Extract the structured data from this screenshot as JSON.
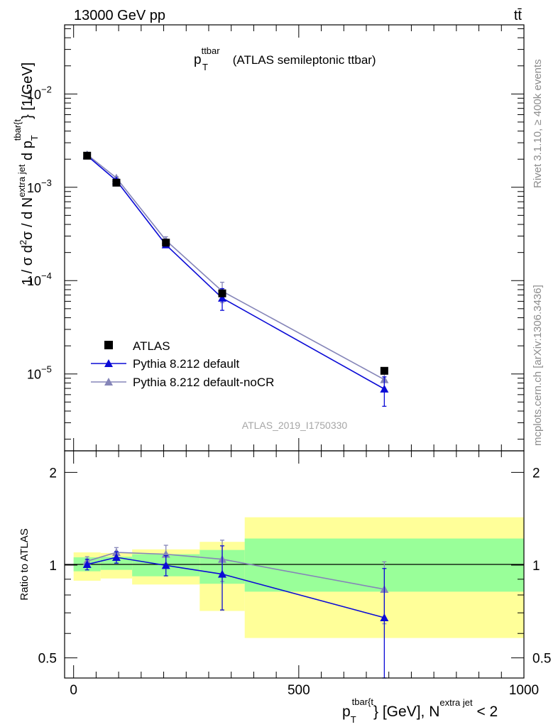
{
  "header": {
    "left": "13000 GeV pp",
    "right": "tt̄"
  },
  "side_labels": {
    "rivet": "Rivet 3.1.10, ≥ 400k events",
    "mcplots": "mcplots.cern.ch [arXiv:1306.3436]"
  },
  "chart_data": [
    {
      "type": "line",
      "panel": "main",
      "title": "p_T^ttbar (ATLAS semileptonic ttbar)",
      "title_parts": {
        "base": "p",
        "sub": "T",
        "sup": "ttbar",
        "rest": " (ATLAS semileptonic ttbar)"
      },
      "watermark": "ATLAS_2019_I1750330",
      "ylabel": "1 / σ d²σ / d N^{extra jet} d p_T^{tbar{t}} [1/GeV]",
      "ylabel_parts": {
        "p1": "1 / σ d",
        "sup1": "2",
        "p2": "σ / d N",
        "sup2": "extra jet",
        "p3": " d p",
        "sub3": "T",
        "sup3": "tbar{t",
        "p4": "} [1/GeV]"
      },
      "yscale": "log",
      "ylim": [
        1.5e-06,
        0.055
      ],
      "yticks": [
        {
          "value": 1e-05,
          "label_base": "10",
          "label_exp": "−5"
        },
        {
          "value": 0.0001,
          "label_base": "10",
          "label_exp": "−4"
        },
        {
          "value": 0.001,
          "label_base": "10",
          "label_exp": "−3"
        },
        {
          "value": 0.01,
          "label_base": "10",
          "label_exp": "−2"
        }
      ],
      "xlim": [
        -20,
        1000
      ],
      "legend_position": "bottom-left",
      "series": [
        {
          "name": "ATLAS",
          "color": "#000000",
          "marker": "square",
          "x": [
            30,
            95,
            205,
            330,
            690
          ],
          "xerr": [
            [
              30,
              30
            ],
            [
              35,
              35
            ],
            [
              75,
              75
            ],
            [
              50,
              50
            ],
            [
              310,
              310
            ]
          ],
          "y": [
            0.00218,
            0.00112,
            0.000255,
            7.3e-05,
            1.08e-05
          ],
          "yerr": [
            5e-05,
            3e-05,
            1e-05,
            3e-06,
            7e-07
          ]
        },
        {
          "name": "Pythia 8.212 default",
          "color": "#0b0bd6",
          "marker": "triangle",
          "x": [
            30,
            95,
            205,
            330,
            690
          ],
          "y": [
            0.00218,
            0.00118,
            0.000242,
            6.5e-05,
            6.9e-06
          ],
          "yerr": [
            6e-05,
            4e-05,
            1.5e-05,
            1.7e-05,
            2.4e-06
          ]
        },
        {
          "name": "Pythia 8.212 default-noCR",
          "color": "#8585b8",
          "marker": "triangle",
          "x": [
            30,
            95,
            205,
            330,
            690
          ],
          "y": [
            0.00224,
            0.00126,
            0.00027,
            7.7e-05,
            8.7e-06
          ],
          "yerr": [
            6e-05,
            4e-05,
            2.5e-05,
            1.9e-05,
            1.9e-06
          ]
        }
      ]
    },
    {
      "type": "line",
      "panel": "ratio",
      "ylabel": "Ratio to ATLAS",
      "yscale": "log",
      "ylim": [
        0.43,
        2.35
      ],
      "yticks": [
        {
          "value": 0.5,
          "label": "0.5"
        },
        {
          "value": 1,
          "label": "1"
        },
        {
          "value": 2,
          "label": "2"
        }
      ],
      "xlim": [
        -20,
        1000
      ],
      "xticks": [
        {
          "value": 0,
          "label": "0"
        },
        {
          "value": 500,
          "label": "500"
        },
        {
          "value": 1000,
          "label": "1000"
        }
      ],
      "xlabel": "p_T^{tbar{t}} [GeV], N^{extra jet} < 2",
      "xlabel_parts": {
        "p1": "p",
        "sub1": "T",
        "sup1": "tbar{t",
        "p2": "} [GeV], N",
        "sup2": "extra jet",
        "p3": " < 2"
      },
      "bands": [
        {
          "x0": 0,
          "x1": 60,
          "green": [
            0.955,
            1.06
          ],
          "yellow": [
            0.89,
            1.1
          ]
        },
        {
          "x0": 60,
          "x1": 130,
          "green": [
            0.965,
            1.065
          ],
          "yellow": [
            0.905,
            1.095
          ]
        },
        {
          "x0": 130,
          "x1": 280,
          "green": [
            0.92,
            1.085
          ],
          "yellow": [
            0.865,
            1.125
          ]
        },
        {
          "x0": 280,
          "x1": 380,
          "green": [
            0.87,
            1.12
          ],
          "yellow": [
            0.71,
            1.19
          ]
        },
        {
          "x0": 380,
          "x1": 1000,
          "green": [
            0.82,
            1.22
          ],
          "yellow": [
            0.58,
            1.43
          ]
        }
      ],
      "series": [
        {
          "name": "Pythia 8.212 default",
          "color": "#0b0bd6",
          "x": [
            30,
            95,
            205,
            330,
            690
          ],
          "y": [
            1.005,
            1.06,
            0.998,
            0.935,
            0.675
          ],
          "yerr": [
            0.04,
            0.045,
            0.075,
            0.22,
            0.3
          ]
        },
        {
          "name": "Pythia 8.212 default-noCR",
          "color": "#8585b8",
          "x": [
            30,
            95,
            205,
            330,
            690
          ],
          "y": [
            1.03,
            1.1,
            1.085,
            1.045,
            0.835
          ],
          "yerr": [
            0.035,
            0.04,
            0.075,
            0.16,
            0.19
          ]
        }
      ]
    }
  ]
}
